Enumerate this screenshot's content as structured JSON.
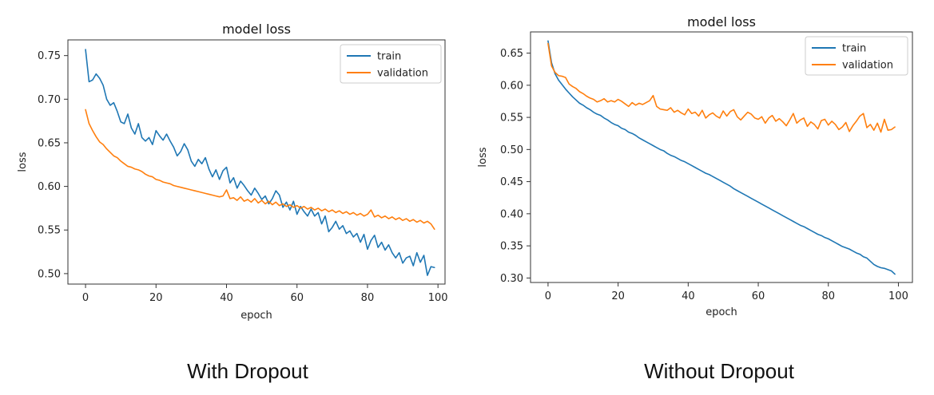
{
  "captions": {
    "left": "With Dropout",
    "right": "Without Dropout"
  },
  "chart_data": [
    {
      "type": "line",
      "title": "model loss",
      "xlabel": "epoch",
      "ylabel": "loss",
      "xlim": [
        -5,
        102
      ],
      "ylim": [
        0.488,
        0.768
      ],
      "xticks": [
        0,
        20,
        40,
        60,
        80,
        100
      ],
      "yticks": [
        0.5,
        0.55,
        0.6,
        0.65,
        0.7,
        0.75
      ],
      "ytick_labels": [
        "0.50",
        "0.55",
        "0.60",
        "0.65",
        "0.70",
        "0.75"
      ],
      "legend_position": "upper right",
      "colors": {
        "train": "#1f77b4",
        "validation": "#ff7f0e"
      },
      "series": [
        {
          "name": "train",
          "x": [
            0,
            1,
            2,
            3,
            4,
            5,
            6,
            7,
            8,
            9,
            10,
            11,
            12,
            13,
            14,
            15,
            16,
            17,
            18,
            19,
            20,
            21,
            22,
            23,
            24,
            25,
            26,
            27,
            28,
            29,
            30,
            31,
            32,
            33,
            34,
            35,
            36,
            37,
            38,
            39,
            40,
            41,
            42,
            43,
            44,
            45,
            46,
            47,
            48,
            49,
            50,
            51,
            52,
            53,
            54,
            55,
            56,
            57,
            58,
            59,
            60,
            61,
            62,
            63,
            64,
            65,
            66,
            67,
            68,
            69,
            70,
            71,
            72,
            73,
            74,
            75,
            76,
            77,
            78,
            79,
            80,
            81,
            82,
            83,
            84,
            85,
            86,
            87,
            88,
            89,
            90,
            91,
            92,
            93,
            94,
            95,
            96,
            97,
            98,
            99
          ],
          "values": [
            0.757,
            0.72,
            0.722,
            0.729,
            0.724,
            0.716,
            0.7,
            0.693,
            0.696,
            0.686,
            0.674,
            0.672,
            0.683,
            0.667,
            0.66,
            0.672,
            0.656,
            0.652,
            0.656,
            0.648,
            0.664,
            0.658,
            0.653,
            0.66,
            0.652,
            0.645,
            0.635,
            0.64,
            0.649,
            0.642,
            0.629,
            0.623,
            0.631,
            0.626,
            0.633,
            0.62,
            0.611,
            0.619,
            0.608,
            0.618,
            0.622,
            0.604,
            0.61,
            0.598,
            0.606,
            0.601,
            0.595,
            0.59,
            0.598,
            0.592,
            0.585,
            0.589,
            0.58,
            0.586,
            0.595,
            0.59,
            0.576,
            0.582,
            0.573,
            0.583,
            0.568,
            0.577,
            0.571,
            0.566,
            0.574,
            0.566,
            0.57,
            0.557,
            0.566,
            0.548,
            0.553,
            0.56,
            0.551,
            0.555,
            0.546,
            0.549,
            0.542,
            0.546,
            0.536,
            0.545,
            0.528,
            0.538,
            0.544,
            0.53,
            0.536,
            0.527,
            0.533,
            0.524,
            0.518,
            0.524,
            0.512,
            0.518,
            0.52,
            0.509,
            0.524,
            0.513,
            0.521,
            0.498,
            0.508,
            0.507
          ]
        },
        {
          "name": "validation",
          "x": [
            0,
            1,
            2,
            3,
            4,
            5,
            6,
            7,
            8,
            9,
            10,
            11,
            12,
            13,
            14,
            15,
            16,
            17,
            18,
            19,
            20,
            21,
            22,
            23,
            24,
            25,
            26,
            27,
            28,
            29,
            30,
            31,
            32,
            33,
            34,
            35,
            36,
            37,
            38,
            39,
            40,
            41,
            42,
            43,
            44,
            45,
            46,
            47,
            48,
            49,
            50,
            51,
            52,
            53,
            54,
            55,
            56,
            57,
            58,
            59,
            60,
            61,
            62,
            63,
            64,
            65,
            66,
            67,
            68,
            69,
            70,
            71,
            72,
            73,
            74,
            75,
            76,
            77,
            78,
            79,
            80,
            81,
            82,
            83,
            84,
            85,
            86,
            87,
            88,
            89,
            90,
            91,
            92,
            93,
            94,
            95,
            96,
            97,
            98,
            99
          ],
          "values": [
            0.688,
            0.672,
            0.664,
            0.657,
            0.651,
            0.648,
            0.643,
            0.639,
            0.635,
            0.633,
            0.629,
            0.626,
            0.623,
            0.622,
            0.62,
            0.619,
            0.617,
            0.614,
            0.612,
            0.611,
            0.608,
            0.607,
            0.605,
            0.604,
            0.603,
            0.601,
            0.6,
            0.599,
            0.598,
            0.597,
            0.596,
            0.595,
            0.594,
            0.593,
            0.592,
            0.591,
            0.59,
            0.589,
            0.588,
            0.589,
            0.596,
            0.586,
            0.587,
            0.584,
            0.588,
            0.583,
            0.585,
            0.582,
            0.586,
            0.581,
            0.584,
            0.58,
            0.583,
            0.579,
            0.582,
            0.578,
            0.58,
            0.577,
            0.579,
            0.576,
            0.578,
            0.575,
            0.577,
            0.574,
            0.576,
            0.573,
            0.575,
            0.572,
            0.574,
            0.571,
            0.573,
            0.57,
            0.572,
            0.569,
            0.571,
            0.568,
            0.57,
            0.567,
            0.569,
            0.566,
            0.568,
            0.573,
            0.565,
            0.567,
            0.564,
            0.566,
            0.563,
            0.565,
            0.562,
            0.564,
            0.561,
            0.563,
            0.56,
            0.562,
            0.559,
            0.561,
            0.558,
            0.56,
            0.557,
            0.551
          ]
        }
      ]
    },
    {
      "type": "line",
      "title": "model loss",
      "xlabel": "epoch",
      "ylabel": "loss",
      "xlim": [
        -5,
        104
      ],
      "ylim": [
        0.293,
        0.683
      ],
      "xticks": [
        0,
        20,
        40,
        60,
        80,
        100
      ],
      "yticks": [
        0.3,
        0.35,
        0.4,
        0.45,
        0.5,
        0.55,
        0.6,
        0.65
      ],
      "ytick_labels": [
        "0.30",
        "0.35",
        "0.40",
        "0.45",
        "0.50",
        "0.55",
        "0.60",
        "0.65"
      ],
      "legend_position": "upper right",
      "colors": {
        "train": "#1f77b4",
        "validation": "#ff7f0e"
      },
      "series": [
        {
          "name": "train",
          "x": [
            0,
            1,
            2,
            3,
            4,
            5,
            6,
            7,
            8,
            9,
            10,
            11,
            12,
            13,
            14,
            15,
            16,
            17,
            18,
            19,
            20,
            21,
            22,
            23,
            24,
            25,
            26,
            27,
            28,
            29,
            30,
            31,
            32,
            33,
            34,
            35,
            36,
            37,
            38,
            39,
            40,
            41,
            42,
            43,
            44,
            45,
            46,
            47,
            48,
            49,
            50,
            51,
            52,
            53,
            54,
            55,
            56,
            57,
            58,
            59,
            60,
            61,
            62,
            63,
            64,
            65,
            66,
            67,
            68,
            69,
            70,
            71,
            72,
            73,
            74,
            75,
            76,
            77,
            78,
            79,
            80,
            81,
            82,
            83,
            84,
            85,
            86,
            87,
            88,
            89,
            90,
            91,
            92,
            93,
            94,
            95,
            96,
            97,
            98,
            99
          ],
          "values": [
            0.669,
            0.635,
            0.618,
            0.608,
            0.601,
            0.594,
            0.588,
            0.582,
            0.577,
            0.572,
            0.569,
            0.565,
            0.562,
            0.558,
            0.555,
            0.553,
            0.549,
            0.546,
            0.542,
            0.539,
            0.537,
            0.533,
            0.531,
            0.527,
            0.525,
            0.522,
            0.518,
            0.515,
            0.512,
            0.509,
            0.506,
            0.503,
            0.5,
            0.498,
            0.494,
            0.491,
            0.489,
            0.486,
            0.483,
            0.481,
            0.478,
            0.475,
            0.472,
            0.469,
            0.466,
            0.463,
            0.461,
            0.458,
            0.455,
            0.452,
            0.449,
            0.446,
            0.443,
            0.439,
            0.436,
            0.433,
            0.43,
            0.427,
            0.424,
            0.421,
            0.418,
            0.415,
            0.412,
            0.409,
            0.406,
            0.403,
            0.4,
            0.397,
            0.394,
            0.391,
            0.388,
            0.385,
            0.382,
            0.38,
            0.377,
            0.374,
            0.371,
            0.368,
            0.366,
            0.363,
            0.361,
            0.358,
            0.355,
            0.352,
            0.349,
            0.347,
            0.345,
            0.342,
            0.339,
            0.337,
            0.333,
            0.331,
            0.326,
            0.321,
            0.318,
            0.316,
            0.315,
            0.313,
            0.311,
            0.306
          ]
        },
        {
          "name": "validation",
          "x": [
            0,
            1,
            2,
            3,
            4,
            5,
            6,
            7,
            8,
            9,
            10,
            11,
            12,
            13,
            14,
            15,
            16,
            17,
            18,
            19,
            20,
            21,
            22,
            23,
            24,
            25,
            26,
            27,
            28,
            29,
            30,
            31,
            32,
            33,
            34,
            35,
            36,
            37,
            38,
            39,
            40,
            41,
            42,
            43,
            44,
            45,
            46,
            47,
            48,
            49,
            50,
            51,
            52,
            53,
            54,
            55,
            56,
            57,
            58,
            59,
            60,
            61,
            62,
            63,
            64,
            65,
            66,
            67,
            68,
            69,
            70,
            71,
            72,
            73,
            74,
            75,
            76,
            77,
            78,
            79,
            80,
            81,
            82,
            83,
            84,
            85,
            86,
            87,
            88,
            89,
            90,
            91,
            92,
            93,
            94,
            95,
            96,
            97,
            98,
            99
          ],
          "values": [
            0.665,
            0.63,
            0.62,
            0.615,
            0.614,
            0.612,
            0.602,
            0.598,
            0.595,
            0.59,
            0.587,
            0.583,
            0.58,
            0.578,
            0.574,
            0.576,
            0.579,
            0.574,
            0.576,
            0.574,
            0.578,
            0.575,
            0.571,
            0.567,
            0.573,
            0.569,
            0.572,
            0.57,
            0.573,
            0.576,
            0.584,
            0.567,
            0.563,
            0.562,
            0.561,
            0.565,
            0.558,
            0.561,
            0.557,
            0.554,
            0.563,
            0.556,
            0.558,
            0.552,
            0.561,
            0.549,
            0.554,
            0.557,
            0.552,
            0.549,
            0.56,
            0.552,
            0.559,
            0.562,
            0.551,
            0.546,
            0.552,
            0.558,
            0.555,
            0.549,
            0.547,
            0.551,
            0.541,
            0.549,
            0.553,
            0.544,
            0.548,
            0.543,
            0.537,
            0.546,
            0.556,
            0.541,
            0.546,
            0.549,
            0.536,
            0.543,
            0.539,
            0.532,
            0.545,
            0.547,
            0.538,
            0.544,
            0.539,
            0.531,
            0.535,
            0.542,
            0.528,
            0.537,
            0.544,
            0.552,
            0.556,
            0.534,
            0.539,
            0.53,
            0.541,
            0.527,
            0.547,
            0.53,
            0.531,
            0.535
          ]
        }
      ]
    }
  ]
}
